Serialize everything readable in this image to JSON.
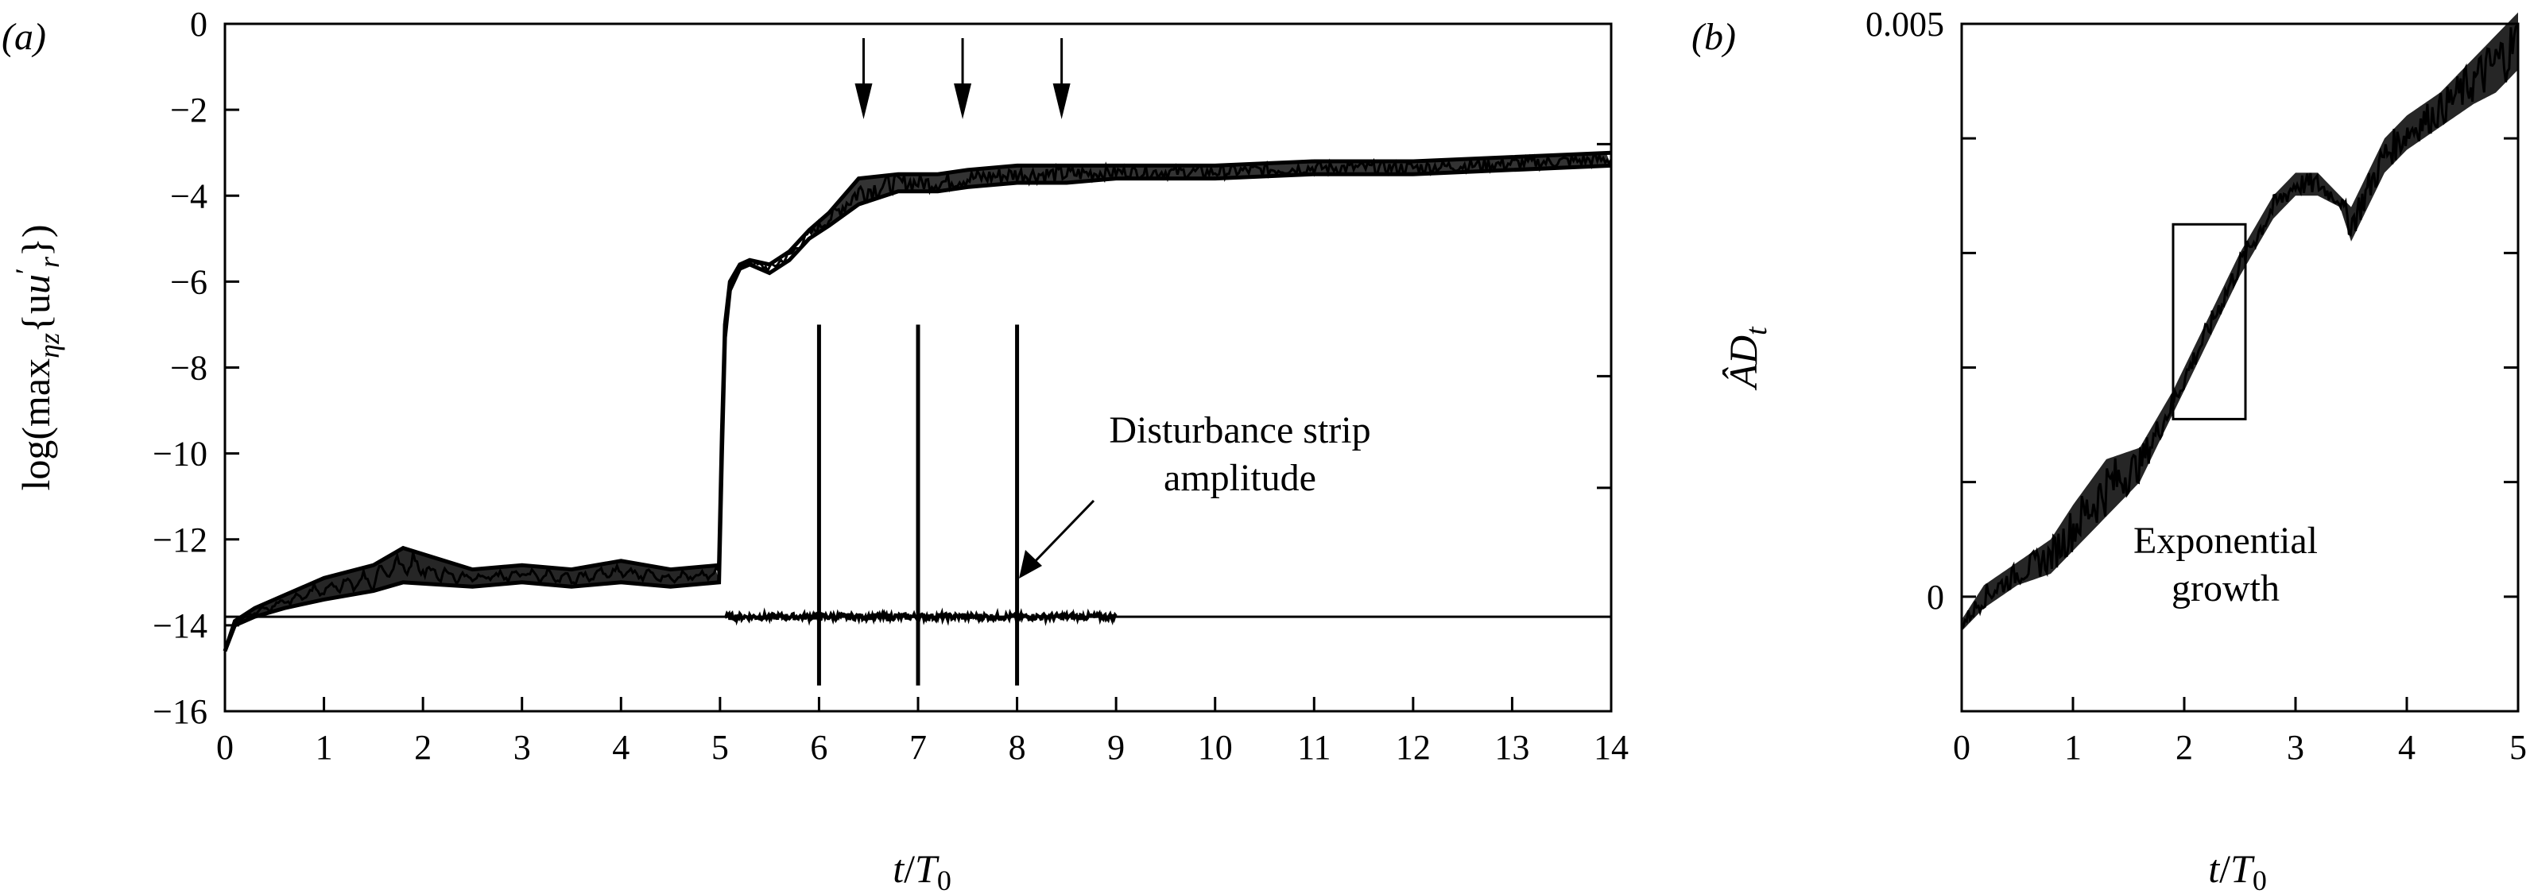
{
  "chart_data": [
    {
      "panel_label": "(a)",
      "type": "line",
      "ylabel": "log(max_ηz{u′_r})",
      "ylabel_parts": {
        "log": "log(max",
        "sub": "ηz",
        "mid": "{u",
        "sup": "′",
        "sub2": "r",
        "end": "})"
      },
      "xlabel": "t/T₀",
      "xlabel_parts": {
        "t": "t",
        "slash": "/",
        "T": "T",
        "sub": "0"
      },
      "xlim": [
        0,
        14
      ],
      "ylim": [
        -16,
        0
      ],
      "xticks": [
        "0",
        "1",
        "2",
        "3",
        "4",
        "5",
        "6",
        "7",
        "8",
        "9",
        "10",
        "11",
        "12",
        "13",
        "14"
      ],
      "yticks": [
        "0",
        "−2",
        "−4",
        "−6",
        "−8",
        "−10",
        "−12",
        "−14",
        "−16"
      ],
      "baseline_y": -13.8,
      "series": [
        {
          "name": "max disturbance (upper envelope)",
          "x": [
            0,
            0.1,
            0.3,
            0.6,
            1.0,
            1.5,
            1.8,
            2.5,
            3.0,
            3.5,
            4.0,
            4.5,
            4.99,
            5.02,
            5.05,
            5.1,
            5.2,
            5.3,
            5.5,
            5.7,
            5.9,
            6.1,
            6.4,
            6.8,
            7.2,
            7.5,
            8.0,
            8.5,
            9.0,
            10.0,
            11.0,
            12.0,
            13.0,
            14.0
          ],
          "y": [
            -14.6,
            -13.9,
            -13.6,
            -13.3,
            -12.9,
            -12.6,
            -12.2,
            -12.7,
            -12.6,
            -12.7,
            -12.5,
            -12.7,
            -12.6,
            -9.5,
            -7.0,
            -6.0,
            -5.6,
            -5.5,
            -5.6,
            -5.3,
            -4.8,
            -4.4,
            -3.6,
            -3.5,
            -3.5,
            -3.4,
            -3.3,
            -3.3,
            -3.3,
            -3.3,
            -3.2,
            -3.2,
            -3.1,
            -3.0
          ]
        },
        {
          "name": "max disturbance (lower envelope)",
          "x": [
            0,
            0.1,
            0.3,
            0.6,
            1.0,
            1.5,
            1.8,
            2.5,
            3.0,
            3.5,
            4.0,
            4.5,
            4.99,
            5.02,
            5.05,
            5.1,
            5.2,
            5.3,
            5.5,
            5.7,
            5.9,
            6.1,
            6.4,
            6.8,
            7.2,
            7.5,
            8.0,
            8.5,
            9.0,
            10.0,
            11.0,
            12.0,
            13.0,
            14.0
          ],
          "y": [
            -14.6,
            -14.0,
            -13.8,
            -13.6,
            -13.4,
            -13.2,
            -13.0,
            -13.1,
            -13.0,
            -13.1,
            -13.0,
            -13.1,
            -13.0,
            -10.0,
            -7.3,
            -6.2,
            -5.7,
            -5.6,
            -5.8,
            -5.5,
            -5.0,
            -4.7,
            -4.2,
            -3.9,
            -3.9,
            -3.8,
            -3.7,
            -3.7,
            -3.6,
            -3.6,
            -3.5,
            -3.5,
            -3.4,
            -3.3
          ]
        },
        {
          "name": "Disturbance strip amplitude",
          "x_range": [
            5.05,
            9.0
          ],
          "level": -13.8,
          "spike_times": [
            6,
            7,
            8
          ],
          "spike_max": -7.0,
          "spike_min": -15.4
        }
      ],
      "arrow_times": [
        6.45,
        7.45,
        8.45
      ],
      "annotations": [
        "Disturbance strip",
        "amplitude"
      ]
    },
    {
      "panel_label": "(b)",
      "type": "line",
      "ylabel": "ÂD_t",
      "ylabel_parts": {
        "main": "ÂD",
        "sub": "t"
      },
      "xlabel": "t/T₀",
      "xlabel_parts": {
        "t": "t",
        "slash": "/",
        "T": "T",
        "sub": "0"
      },
      "xlim": [
        0,
        5
      ],
      "ylim": [
        -0.001,
        0.005
      ],
      "xticks": [
        "0",
        "1",
        "2",
        "3",
        "4",
        "5"
      ],
      "ytick_labels": [
        {
          "label": "0.005",
          "value": 0.005
        },
        {
          "label": "0",
          "value": 0
        }
      ],
      "series": [
        {
          "name": "ÂD_t (upper envelope)",
          "x": [
            0,
            0.2,
            0.5,
            0.8,
            1.0,
            1.3,
            1.6,
            1.9,
            2.2,
            2.5,
            2.8,
            3.0,
            3.2,
            3.4,
            3.5,
            3.8,
            4.0,
            4.3,
            4.6,
            4.8,
            5.0
          ],
          "y": [
            -0.0002,
            0.0001,
            0.0003,
            0.0005,
            0.0008,
            0.0012,
            0.0013,
            0.0018,
            0.0024,
            0.003,
            0.0035,
            0.0037,
            0.0037,
            0.0035,
            0.0034,
            0.004,
            0.0042,
            0.0044,
            0.0047,
            0.0049,
            0.0051
          ]
        },
        {
          "name": "ÂD_t (lower envelope)",
          "x": [
            0,
            0.2,
            0.5,
            0.8,
            1.0,
            1.3,
            1.6,
            1.9,
            2.2,
            2.5,
            2.8,
            3.0,
            3.2,
            3.4,
            3.5,
            3.8,
            4.0,
            4.3,
            4.6,
            4.8,
            5.0
          ],
          "y": [
            -0.0003,
            -0.0001,
            0.0001,
            0.0002,
            0.0004,
            0.0007,
            0.001,
            0.0016,
            0.0022,
            0.0028,
            0.0033,
            0.0035,
            0.0035,
            0.0034,
            0.0031,
            0.0037,
            0.0039,
            0.0041,
            0.0043,
            0.0044,
            0.0046
          ]
        }
      ],
      "exponential_growth_box": {
        "x_range": [
          1.9,
          2.55
        ],
        "y_range": [
          0.00155,
          0.00325
        ]
      },
      "annotations": [
        "Exponential",
        "growth"
      ]
    }
  ]
}
